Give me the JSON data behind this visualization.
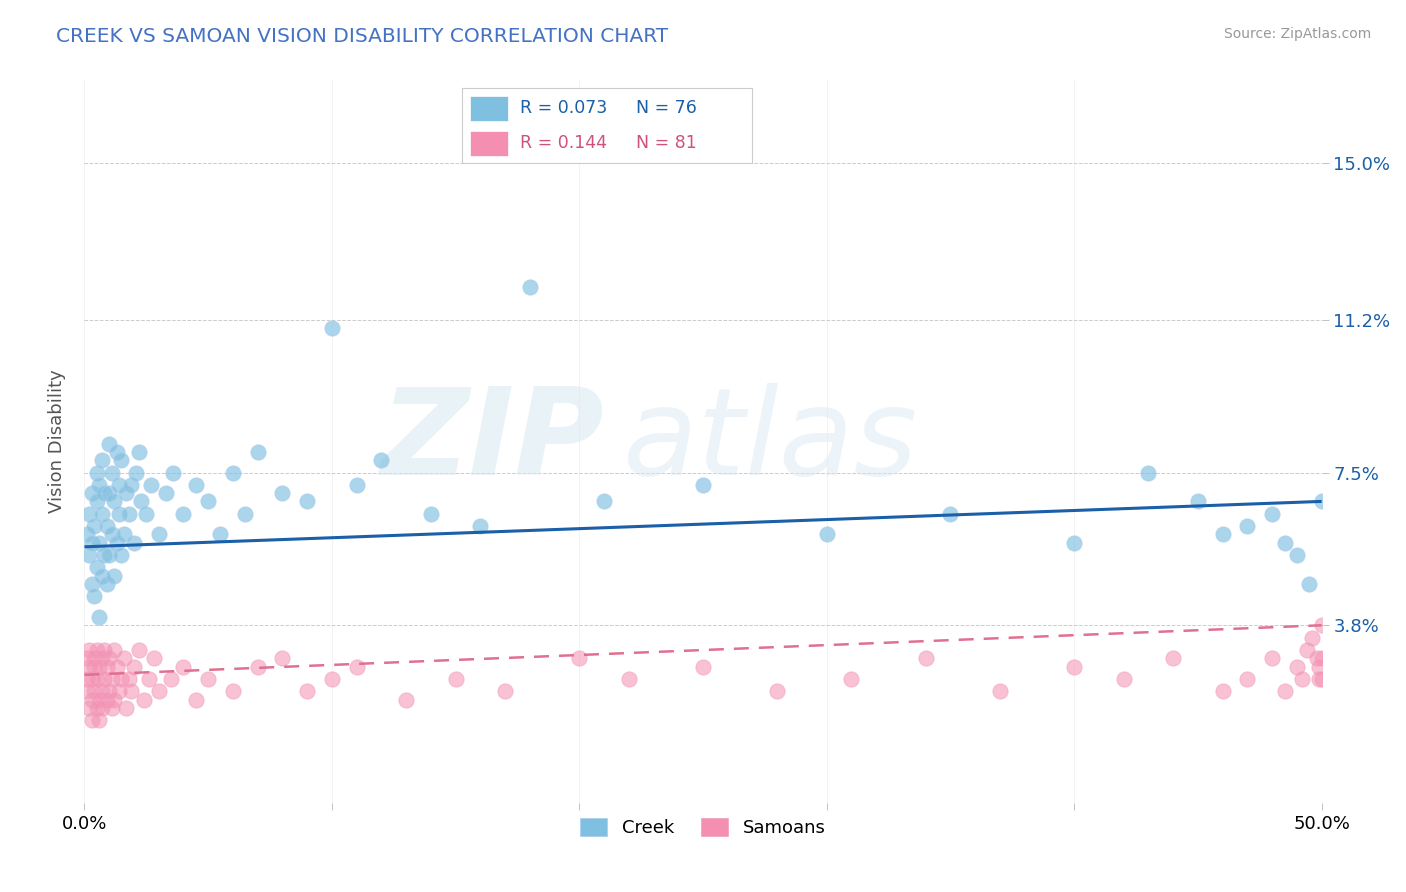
{
  "title": "CREEK VS SAMOAN VISION DISABILITY CORRELATION CHART",
  "source": "Source: ZipAtlas.com",
  "ylabel": "Vision Disability",
  "yticks": [
    "3.8%",
    "7.5%",
    "11.2%",
    "15.0%"
  ],
  "ytick_vals": [
    0.038,
    0.075,
    0.112,
    0.15
  ],
  "xlim": [
    0.0,
    0.5
  ],
  "ylim": [
    -0.005,
    0.17
  ],
  "creek_R": 0.073,
  "creek_N": 76,
  "samoan_R": 0.144,
  "samoan_N": 81,
  "creek_color": "#7fbfdf",
  "samoan_color": "#f48fb1",
  "creek_line_color": "#1a5fa8",
  "samoan_line_color": "#e07090",
  "background_color": "#ffffff",
  "grid_color": "#cccccc",
  "title_color": "#4472c4",
  "watermark_zip": "ZIP",
  "watermark_atlas": "atlas",
  "creek_line_y0": 0.057,
  "creek_line_y1": 0.068,
  "samoan_line_y0": 0.026,
  "samoan_line_y1": 0.038,
  "creek_x": [
    0.001,
    0.002,
    0.002,
    0.003,
    0.003,
    0.003,
    0.004,
    0.004,
    0.005,
    0.005,
    0.005,
    0.006,
    0.006,
    0.006,
    0.007,
    0.007,
    0.007,
    0.008,
    0.008,
    0.009,
    0.009,
    0.01,
    0.01,
    0.01,
    0.011,
    0.011,
    0.012,
    0.012,
    0.013,
    0.013,
    0.014,
    0.014,
    0.015,
    0.015,
    0.016,
    0.017,
    0.018,
    0.019,
    0.02,
    0.021,
    0.022,
    0.023,
    0.025,
    0.027,
    0.03,
    0.033,
    0.036,
    0.04,
    0.045,
    0.05,
    0.055,
    0.06,
    0.065,
    0.07,
    0.08,
    0.09,
    0.1,
    0.11,
    0.12,
    0.14,
    0.16,
    0.18,
    0.21,
    0.25,
    0.3,
    0.35,
    0.4,
    0.43,
    0.45,
    0.46,
    0.47,
    0.48,
    0.485,
    0.49,
    0.495,
    0.5
  ],
  "creek_y": [
    0.06,
    0.055,
    0.065,
    0.048,
    0.058,
    0.07,
    0.045,
    0.062,
    0.052,
    0.068,
    0.075,
    0.04,
    0.058,
    0.072,
    0.05,
    0.065,
    0.078,
    0.055,
    0.07,
    0.048,
    0.062,
    0.055,
    0.07,
    0.082,
    0.06,
    0.075,
    0.05,
    0.068,
    0.058,
    0.08,
    0.065,
    0.072,
    0.055,
    0.078,
    0.06,
    0.07,
    0.065,
    0.072,
    0.058,
    0.075,
    0.08,
    0.068,
    0.065,
    0.072,
    0.06,
    0.07,
    0.075,
    0.065,
    0.072,
    0.068,
    0.06,
    0.075,
    0.065,
    0.08,
    0.07,
    0.068,
    0.11,
    0.072,
    0.078,
    0.065,
    0.062,
    0.12,
    0.068,
    0.072,
    0.06,
    0.065,
    0.058,
    0.075,
    0.068,
    0.06,
    0.062,
    0.065,
    0.058,
    0.055,
    0.048,
    0.068
  ],
  "samoan_x": [
    0.001,
    0.001,
    0.001,
    0.002,
    0.002,
    0.002,
    0.003,
    0.003,
    0.003,
    0.004,
    0.004,
    0.004,
    0.005,
    0.005,
    0.005,
    0.006,
    0.006,
    0.006,
    0.007,
    0.007,
    0.007,
    0.008,
    0.008,
    0.009,
    0.009,
    0.01,
    0.01,
    0.011,
    0.011,
    0.012,
    0.012,
    0.013,
    0.014,
    0.015,
    0.016,
    0.017,
    0.018,
    0.019,
    0.02,
    0.022,
    0.024,
    0.026,
    0.028,
    0.03,
    0.035,
    0.04,
    0.045,
    0.05,
    0.06,
    0.07,
    0.08,
    0.09,
    0.1,
    0.11,
    0.13,
    0.15,
    0.17,
    0.2,
    0.22,
    0.25,
    0.28,
    0.31,
    0.34,
    0.37,
    0.4,
    0.42,
    0.44,
    0.46,
    0.47,
    0.48,
    0.485,
    0.49,
    0.492,
    0.494,
    0.496,
    0.498,
    0.499,
    0.499,
    0.5,
    0.5,
    0.5
  ],
  "samoan_y": [
    0.025,
    0.03,
    0.022,
    0.028,
    0.018,
    0.032,
    0.02,
    0.025,
    0.015,
    0.03,
    0.022,
    0.028,
    0.018,
    0.025,
    0.032,
    0.02,
    0.015,
    0.028,
    0.022,
    0.03,
    0.018,
    0.025,
    0.032,
    0.02,
    0.028,
    0.022,
    0.03,
    0.018,
    0.025,
    0.032,
    0.02,
    0.028,
    0.022,
    0.025,
    0.03,
    0.018,
    0.025,
    0.022,
    0.028,
    0.032,
    0.02,
    0.025,
    0.03,
    0.022,
    0.025,
    0.028,
    0.02,
    0.025,
    0.022,
    0.028,
    0.03,
    0.022,
    0.025,
    0.028,
    0.02,
    0.025,
    0.022,
    0.03,
    0.025,
    0.028,
    0.022,
    0.025,
    0.03,
    0.022,
    0.028,
    0.025,
    0.03,
    0.022,
    0.025,
    0.03,
    0.022,
    0.028,
    0.025,
    0.032,
    0.035,
    0.03,
    0.025,
    0.028,
    0.03,
    0.025,
    0.038
  ]
}
